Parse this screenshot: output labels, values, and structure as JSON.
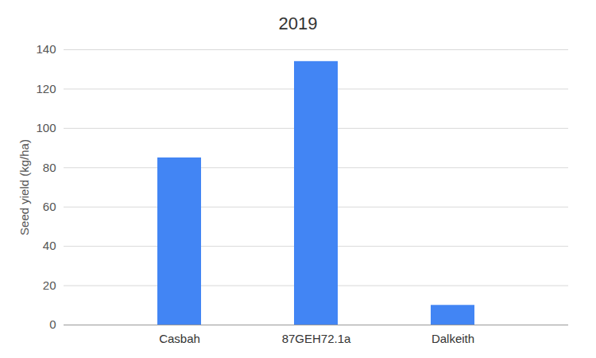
{
  "chart_data": {
    "type": "bar",
    "title": "2019",
    "y_label": "Seed yield (kg/ha)",
    "categories": [
      "Casbah",
      "87GEH72.1a",
      "Dalkeith"
    ],
    "values": [
      85,
      134,
      10
    ],
    "color": "#4285f4",
    "ylim": [
      0,
      140
    ],
    "yticks": [
      0,
      20,
      40,
      60,
      80,
      100,
      120,
      140
    ],
    "grid": true
  }
}
